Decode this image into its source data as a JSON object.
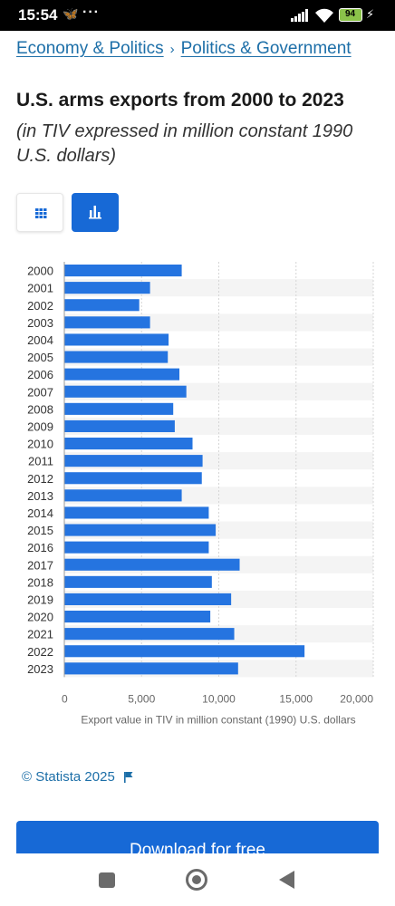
{
  "status": {
    "time": "15:54",
    "battery": "94",
    "dots": "···"
  },
  "breadcrumb": {
    "items": [
      "Economy & Politics",
      "Politics & Government"
    ],
    "separator": "›"
  },
  "title": "U.S. arms exports from 2000 to 2023",
  "subtitle": "(in TIV expressed in million constant 1990 U.S. dollars)",
  "view_toggle": {
    "icons": [
      "table-icon",
      "bar-chart-icon"
    ],
    "active": "bar-chart-icon"
  },
  "chart_data": {
    "type": "bar",
    "orientation": "horizontal",
    "categories": [
      "2000",
      "2001",
      "2002",
      "2003",
      "2004",
      "2005",
      "2006",
      "2007",
      "2008",
      "2009",
      "2010",
      "2011",
      "2012",
      "2013",
      "2014",
      "2015",
      "2016",
      "2017",
      "2018",
      "2019",
      "2020",
      "2021",
      "2022",
      "2023"
    ],
    "values": [
      7600,
      5550,
      4850,
      5550,
      6750,
      6700,
      7450,
      7900,
      7050,
      7150,
      8300,
      8950,
      8900,
      7600,
      9350,
      9800,
      9350,
      11350,
      9550,
      10800,
      9450,
      11000,
      15550,
      11250
    ],
    "xlabel": "Export value in TIV in million constant (1990) U.S. dollars",
    "ylabel": "",
    "xlim": [
      0,
      20000
    ],
    "ticks": [
      "0",
      "5,000",
      "10,000",
      "15,000",
      "20,000"
    ],
    "tick_values": [
      0,
      5000,
      10000,
      15000,
      20000
    ],
    "grid": true,
    "bar_color": "#2574e0"
  },
  "footer": {
    "credit": "© Statista 2025"
  },
  "download": {
    "label": "Download for free"
  }
}
